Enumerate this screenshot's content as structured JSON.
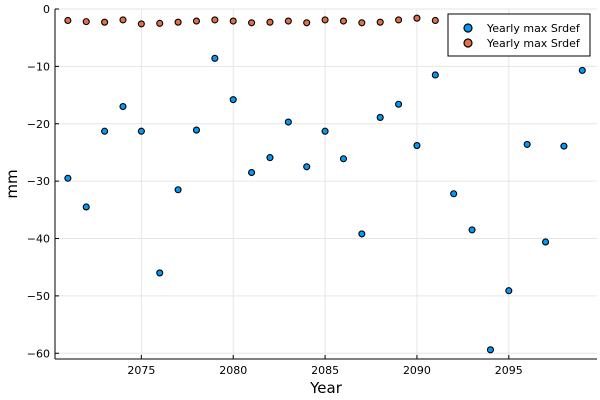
{
  "chart_data": {
    "type": "scatter",
    "title": "",
    "xlabel": "Year",
    "ylabel": "mm",
    "xlim": [
      2070.3,
      2099.8
    ],
    "ylim": [
      -61,
      0
    ],
    "x_ticks": [
      2075,
      2080,
      2085,
      2090,
      2095
    ],
    "y_ticks": [
      0,
      -10,
      -20,
      -30,
      -40,
      -50,
      -60
    ],
    "grid": true,
    "legend_position": "top-right",
    "series": [
      {
        "name": "Yearly max Srdef",
        "color": "#009af9",
        "points": [
          {
            "x": 2071,
            "y": -29.5
          },
          {
            "x": 2072,
            "y": -34.5
          },
          {
            "x": 2073,
            "y": -21.3
          },
          {
            "x": 2074,
            "y": -17.0
          },
          {
            "x": 2075,
            "y": -21.3
          },
          {
            "x": 2076,
            "y": -46.0
          },
          {
            "x": 2077,
            "y": -31.5
          },
          {
            "x": 2078,
            "y": -21.1
          },
          {
            "x": 2079,
            "y": -8.6
          },
          {
            "x": 2080,
            "y": -15.8
          },
          {
            "x": 2081,
            "y": -28.5
          },
          {
            "x": 2082,
            "y": -25.9
          },
          {
            "x": 2083,
            "y": -19.7
          },
          {
            "x": 2084,
            "y": -27.5
          },
          {
            "x": 2085,
            "y": -21.3
          },
          {
            "x": 2086,
            "y": -26.1
          },
          {
            "x": 2087,
            "y": -39.2
          },
          {
            "x": 2088,
            "y": -18.9
          },
          {
            "x": 2089,
            "y": -16.6
          },
          {
            "x": 2090,
            "y": -23.8
          },
          {
            "x": 2091,
            "y": -11.5
          },
          {
            "x": 2092,
            "y": -32.2
          },
          {
            "x": 2093,
            "y": -38.5
          },
          {
            "x": 2094,
            "y": -59.4
          },
          {
            "x": 2095,
            "y": -49.1
          },
          {
            "x": 2096,
            "y": -23.6
          },
          {
            "x": 2097,
            "y": -40.6
          },
          {
            "x": 2098,
            "y": -23.9
          },
          {
            "x": 2099,
            "y": -10.7
          }
        ]
      },
      {
        "name": "Yearly max Srdef",
        "color": "#e26f46",
        "points": [
          {
            "x": 2071,
            "y": -2.0
          },
          {
            "x": 2072,
            "y": -2.2
          },
          {
            "x": 2073,
            "y": -2.3
          },
          {
            "x": 2074,
            "y": -1.9
          },
          {
            "x": 2075,
            "y": -2.6
          },
          {
            "x": 2076,
            "y": -2.5
          },
          {
            "x": 2077,
            "y": -2.3
          },
          {
            "x": 2078,
            "y": -2.1
          },
          {
            "x": 2079,
            "y": -1.9
          },
          {
            "x": 2080,
            "y": -2.1
          },
          {
            "x": 2081,
            "y": -2.4
          },
          {
            "x": 2082,
            "y": -2.3
          },
          {
            "x": 2083,
            "y": -2.1
          },
          {
            "x": 2084,
            "y": -2.4
          },
          {
            "x": 2085,
            "y": -1.9
          },
          {
            "x": 2086,
            "y": -2.1
          },
          {
            "x": 2087,
            "y": -2.4
          },
          {
            "x": 2088,
            "y": -2.3
          },
          {
            "x": 2089,
            "y": -1.9
          },
          {
            "x": 2090,
            "y": -1.6
          },
          {
            "x": 2091,
            "y": -2.0
          }
        ]
      }
    ]
  }
}
